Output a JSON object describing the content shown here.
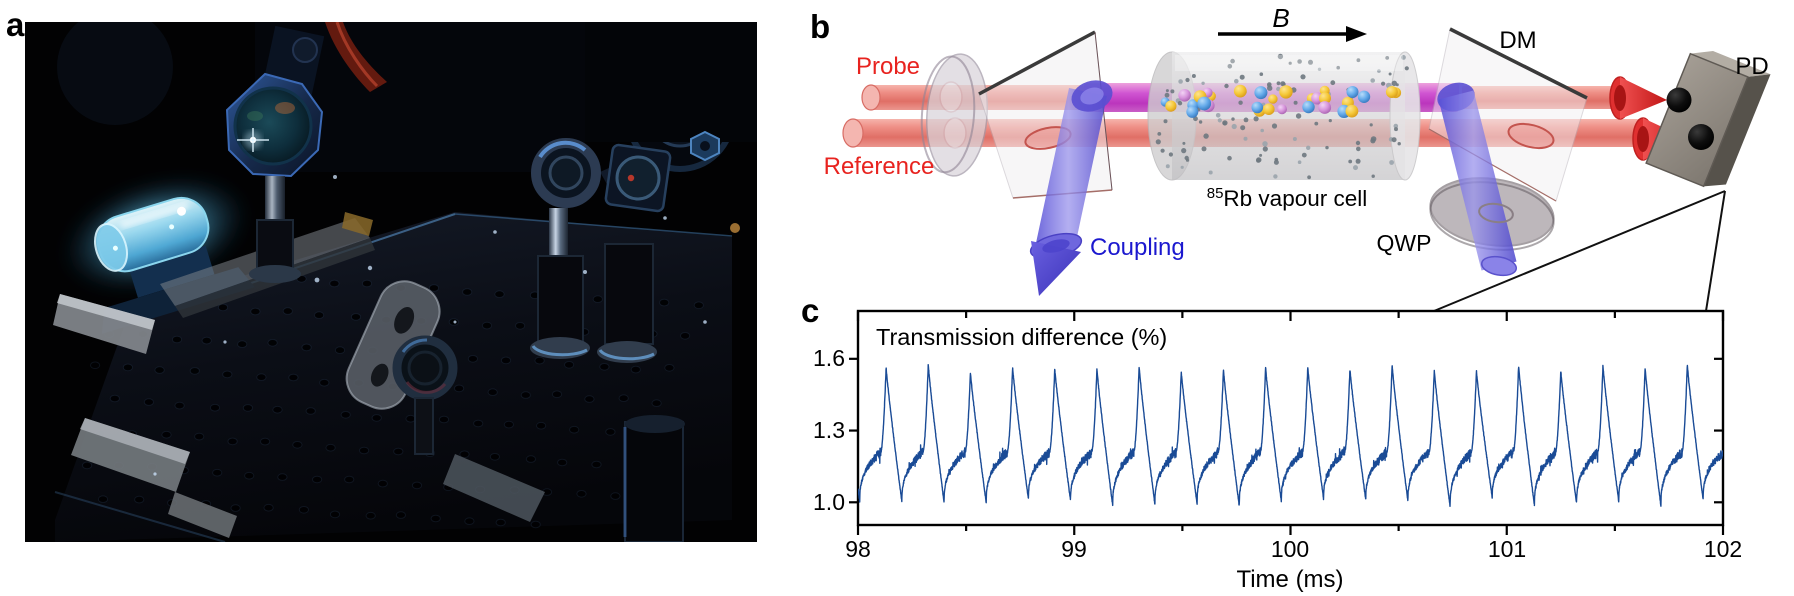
{
  "panel_labels": {
    "a": "a",
    "b": "b",
    "c": "c"
  },
  "diagram": {
    "labels": {
      "probe": "Probe",
      "reference": "Reference",
      "coupling": "Coupling",
      "b_field": "B",
      "dm": "DM",
      "qwp": "QWP",
      "pd": "PD",
      "cell_isotope": "85",
      "cell_name": "Rb vapour cell"
    },
    "colors": {
      "probe_text": "#e8231f",
      "coupling_text": "#1b18cf",
      "beam_red": "#e87d74",
      "beam_magenta": "#cc3ec6",
      "beam_blue": "#5b54dd",
      "glass_edge": "#3a3a3a"
    }
  },
  "chart_data": {
    "type": "line",
    "title": "Transmission difference (%)",
    "xlabel": "Time (ms)",
    "x_range": [
      98,
      102
    ],
    "ylim": [
      0.905,
      1.8
    ],
    "x_ticks": [
      98,
      99,
      100,
      101,
      102
    ],
    "x_tick_labels": [
      "98",
      "99",
      "100",
      "101",
      "102"
    ],
    "x_minor_step": 0.5,
    "y_ticks": [
      1.0,
      1.3,
      1.6
    ],
    "y_tick_labels": [
      "1.0",
      "1.3",
      "1.6"
    ],
    "grid": false,
    "legend": "none",
    "line_color": "#1a4b96",
    "waveform": {
      "description": "Periodic sawtooth-like oscillation: noisy slow climb from ~1.0 to ~1.21, fast smooth rise to peak ~1.56, sharp fall back to ~1.0; ~20 periods across 98-102 ms",
      "period_ms": 0.195,
      "first_min_ms": 98.008,
      "min_value": 1.0,
      "plateau_value": 1.21,
      "peak_value": 1.56,
      "climb_fraction": 0.5,
      "ramp_fraction": 0.125,
      "fall_fraction": 0.375,
      "noise_amp": 0.013,
      "peak_jitter": 0.022,
      "min_jitter": 0.02,
      "seed": 11
    }
  }
}
